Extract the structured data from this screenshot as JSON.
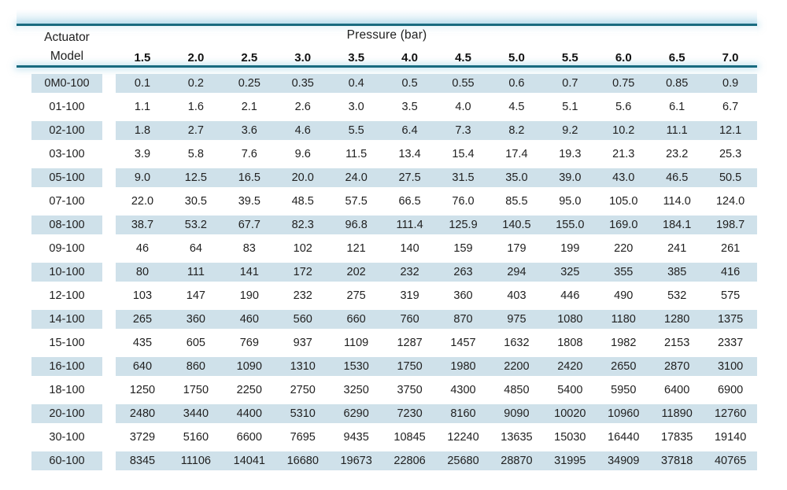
{
  "theme": {
    "accent_line_color": "#196b80",
    "stripe_color": "#cfe1ea",
    "text_color": "#212121",
    "background_color": "#ffffff"
  },
  "table": {
    "corner_header_line1": "Actuator",
    "corner_header_line2": "Model",
    "group_header": "Pressure (bar)",
    "columns": [
      "1.5",
      "2.0",
      "2.5",
      "3.0",
      "3.5",
      "4.0",
      "4.5",
      "5.0",
      "5.5",
      "6.0",
      "6.5",
      "7.0"
    ],
    "rows": [
      {
        "model": "0M0-100",
        "values": [
          "0.1",
          "0.2",
          "0.25",
          "0.35",
          "0.4",
          "0.5",
          "0.55",
          "0.6",
          "0.7",
          "0.75",
          "0.85",
          "0.9"
        ]
      },
      {
        "model": "01-100",
        "values": [
          "1.1",
          "1.6",
          "2.1",
          "2.6",
          "3.0",
          "3.5",
          "4.0",
          "4.5",
          "5.1",
          "5.6",
          "6.1",
          "6.7"
        ]
      },
      {
        "model": "02-100",
        "values": [
          "1.8",
          "2.7",
          "3.6",
          "4.6",
          "5.5",
          "6.4",
          "7.3",
          "8.2",
          "9.2",
          "10.2",
          "11.1",
          "12.1"
        ]
      },
      {
        "model": "03-100",
        "values": [
          "3.9",
          "5.8",
          "7.6",
          "9.6",
          "11.5",
          "13.4",
          "15.4",
          "17.4",
          "19.3",
          "21.3",
          "23.2",
          "25.3"
        ]
      },
      {
        "model": "05-100",
        "values": [
          "9.0",
          "12.5",
          "16.5",
          "20.0",
          "24.0",
          "27.5",
          "31.5",
          "35.0",
          "39.0",
          "43.0",
          "46.5",
          "50.5"
        ]
      },
      {
        "model": "07-100",
        "values": [
          "22.0",
          "30.5",
          "39.5",
          "48.5",
          "57.5",
          "66.5",
          "76.0",
          "85.5",
          "95.0",
          "105.0",
          "114.0",
          "124.0"
        ]
      },
      {
        "model": "08-100",
        "values": [
          "38.7",
          "53.2",
          "67.7",
          "82.3",
          "96.8",
          "111.4",
          "125.9",
          "140.5",
          "155.0",
          "169.0",
          "184.1",
          "198.7"
        ]
      },
      {
        "model": "09-100",
        "values": [
          "46",
          "64",
          "83",
          "102",
          "121",
          "140",
          "159",
          "179",
          "199",
          "220",
          "241",
          "261"
        ]
      },
      {
        "model": "10-100",
        "values": [
          "80",
          "111",
          "141",
          "172",
          "202",
          "232",
          "263",
          "294",
          "325",
          "355",
          "385",
          "416"
        ]
      },
      {
        "model": "12-100",
        "values": [
          "103",
          "147",
          "190",
          "232",
          "275",
          "319",
          "360",
          "403",
          "446",
          "490",
          "532",
          "575"
        ]
      },
      {
        "model": "14-100",
        "values": [
          "265",
          "360",
          "460",
          "560",
          "660",
          "760",
          "870",
          "975",
          "1080",
          "1180",
          "1280",
          "1375"
        ]
      },
      {
        "model": "15-100",
        "values": [
          "435",
          "605",
          "769",
          "937",
          "1109",
          "1287",
          "1457",
          "1632",
          "1808",
          "1982",
          "2153",
          "2337"
        ]
      },
      {
        "model": "16-100",
        "values": [
          "640",
          "860",
          "1090",
          "1310",
          "1530",
          "1750",
          "1980",
          "2200",
          "2420",
          "2650",
          "2870",
          "3100"
        ]
      },
      {
        "model": "18-100",
        "values": [
          "1250",
          "1750",
          "2250",
          "2750",
          "3250",
          "3750",
          "4300",
          "4850",
          "5400",
          "5950",
          "6400",
          "6900"
        ]
      },
      {
        "model": "20-100",
        "values": [
          "2480",
          "3440",
          "4400",
          "5310",
          "6290",
          "7230",
          "8160",
          "9090",
          "10020",
          "10960",
          "11890",
          "12760"
        ]
      },
      {
        "model": "30-100",
        "values": [
          "3729",
          "5160",
          "6600",
          "7695",
          "9435",
          "10845",
          "12240",
          "13635",
          "15030",
          "16440",
          "17835",
          "19140"
        ]
      },
      {
        "model": "60-100",
        "values": [
          "8345",
          "11106",
          "14041",
          "16680",
          "19673",
          "22806",
          "25680",
          "28870",
          "31995",
          "34909",
          "37818",
          "40765"
        ]
      }
    ]
  }
}
